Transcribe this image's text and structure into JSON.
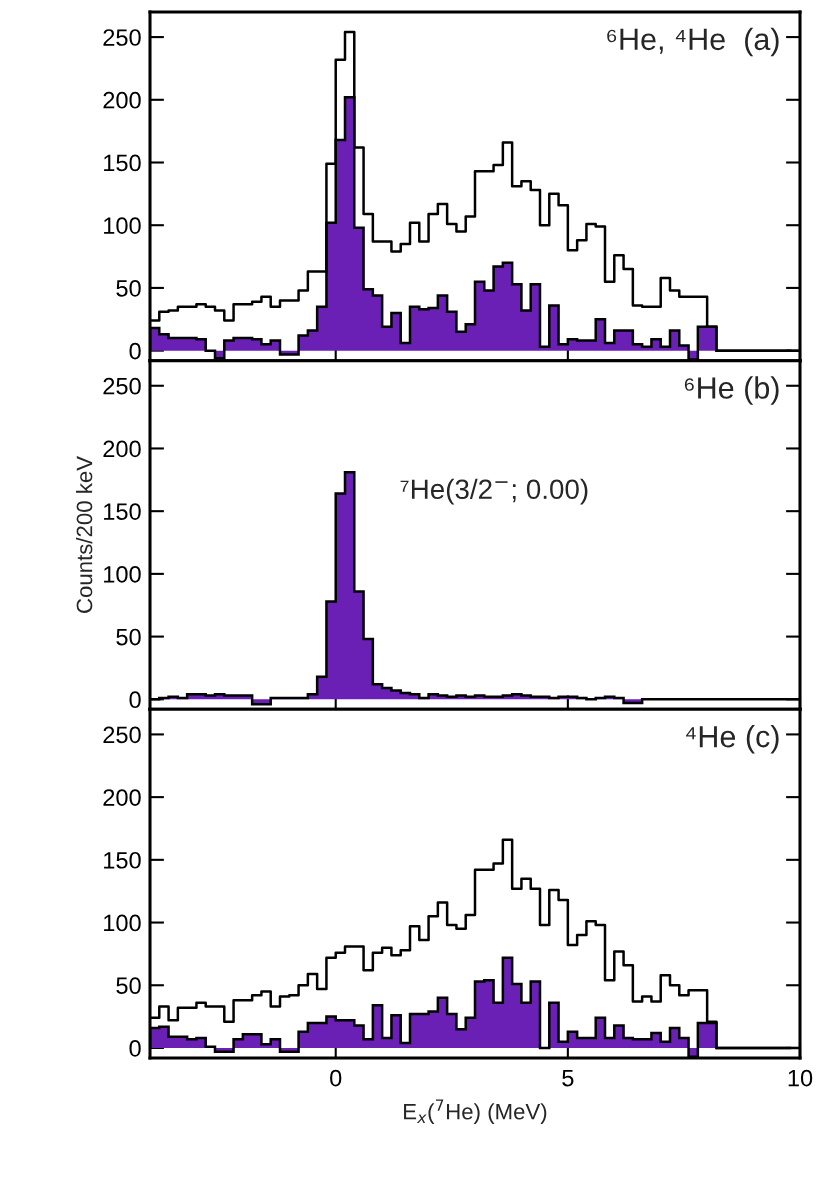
{
  "chart_data": [
    {
      "type": "histogram",
      "tick_labels": "y",
      "bins": [
        -4.0,
        -3.8,
        -3.6,
        -3.4,
        -3.2,
        -3.0,
        -2.8,
        -2.6,
        -2.4,
        -2.2,
        -2.0,
        -1.8,
        -1.6,
        -1.4,
        -1.2,
        -1.0,
        -0.8,
        -0.6,
        -0.4,
        -0.2,
        0.0,
        0.2,
        0.4,
        0.6,
        0.8,
        1.0,
        1.2,
        1.4,
        1.6,
        1.8,
        2.0,
        2.2,
        2.4,
        2.6,
        2.8,
        3.0,
        3.2,
        3.4,
        3.6,
        3.8,
        4.0,
        4.2,
        4.4,
        4.6,
        4.8,
        5.0,
        5.2,
        5.4,
        5.6,
        5.8,
        6.0,
        6.2,
        6.4,
        6.6,
        6.8,
        7.0,
        7.2,
        7.4,
        7.6,
        7.8,
        8.0,
        8.2,
        8.4,
        8.6,
        8.8,
        9.0,
        9.2,
        9.4,
        9.6,
        9.8,
        10.0
      ],
      "series": [
        {
          "type": "step",
          "color": "#000000",
          "x": [
            -4.0,
            -3.8,
            -3.6,
            -3.4,
            -3.2,
            -3.0,
            -2.8,
            -2.6,
            -2.4,
            -2.2,
            -2.0,
            -1.8,
            -1.6,
            -1.4,
            -1.2,
            -1.0,
            -0.8,
            -0.6,
            -0.4,
            -0.2,
            0.0,
            0.2,
            0.4,
            0.6,
            0.8,
            1.0,
            1.2,
            1.4,
            1.6,
            1.8,
            2.0,
            2.2,
            2.4,
            2.6,
            2.8,
            3.0,
            3.2,
            3.4,
            3.6,
            3.8,
            4.0,
            4.2,
            4.4,
            4.6,
            4.8,
            5.0,
            5.2,
            5.4,
            5.6,
            5.8,
            6.0,
            6.2,
            6.4,
            6.6,
            6.8,
            7.0,
            7.2,
            7.4,
            7.6,
            7.8,
            8.0,
            8.2,
            8.4,
            8.6,
            8.8,
            9.0,
            9.2,
            9.4,
            9.6,
            9.8
          ],
          "values": [
            24,
            31,
            32,
            35,
            35,
            37,
            35,
            32,
            24,
            37,
            37,
            39,
            43,
            35,
            40,
            40,
            48,
            63,
            63,
            149,
            232,
            254,
            162,
            109,
            87,
            87,
            79,
            85,
            102,
            87,
            109,
            117,
            101,
            95,
            107,
            143,
            143,
            148,
            166,
            131,
            135,
            128,
            100,
            125,
            116,
            80,
            88,
            101,
            99,
            55,
            76,
            65,
            36,
            35,
            35,
            58,
            48,
            43,
            43,
            43,
            19,
            0,
            0,
            0,
            0,
            0,
            0,
            0,
            0,
            0
          ]
        },
        {
          "color": "#6a1fb5",
          "values": [
            18,
            13,
            10,
            10,
            10,
            9,
            0,
            -6,
            8,
            10,
            10,
            9,
            5,
            8,
            -3,
            -3,
            12,
            16,
            35,
            102,
            168,
            202,
            98,
            49,
            44,
            19,
            30,
            6,
            35,
            33,
            34,
            44,
            31,
            15,
            21,
            55,
            48,
            67,
            70,
            53,
            32,
            53,
            3,
            36,
            5,
            9,
            8,
            8,
            25,
            6,
            16,
            16,
            5,
            3,
            9,
            3,
            16,
            4,
            -7,
            19,
            19,
            0,
            0,
            0,
            0,
            0,
            0,
            0,
            0,
            0
          ]
        }
      ],
      "xlim": [
        -4,
        10
      ],
      "xticks": [
        0,
        5,
        10
      ],
      "ylim": [
        -8,
        270
      ],
      "yticks": [
        0,
        50,
        100,
        150,
        200,
        250
      ],
      "annotations": [
        "⁶He, ⁴He  (a)"
      ]
    },
    {
      "type": "histogram",
      "tick_labels": "y",
      "ylabel": "Counts/200 keV",
      "bins": [
        -4.0,
        -3.8,
        -3.6,
        -3.4,
        -3.2,
        -3.0,
        -2.8,
        -2.6,
        -2.4,
        -2.2,
        -2.0,
        -1.8,
        -1.6,
        -1.4,
        -1.2,
        -1.0,
        -0.8,
        -0.6,
        -0.4,
        -0.2,
        0.0,
        0.2,
        0.4,
        0.6,
        0.8,
        1.0,
        1.2,
        1.4,
        1.6,
        1.8,
        2.0,
        2.2,
        2.4,
        2.6,
        2.8,
        3.0,
        3.2,
        3.4,
        3.6,
        3.8,
        4.0,
        4.2,
        4.4,
        4.6,
        4.8,
        5.0,
        5.2,
        5.4,
        5.6,
        5.8,
        6.0,
        6.2,
        6.4,
        6.6,
        6.8,
        7.0,
        7.2,
        7.4,
        7.6,
        7.8,
        8.0,
        8.2,
        8.4,
        8.6,
        8.8,
        9.0,
        9.2,
        9.4,
        9.6,
        9.8,
        10.0
      ],
      "series": [
        {
          "color": "#6a1fb5",
          "values": [
            0,
            1,
            2,
            1,
            4,
            4,
            3,
            4,
            3,
            3,
            3,
            -4,
            -4,
            1,
            1,
            1,
            1,
            4,
            18,
            78,
            164,
            181,
            86,
            48,
            12,
            9,
            7,
            5,
            4,
            1,
            4,
            3,
            2,
            3,
            2,
            3,
            2,
            2,
            3,
            4,
            3,
            2,
            2,
            1,
            2,
            2,
            1,
            0,
            1,
            2,
            1,
            -3,
            -3,
            0,
            0,
            0,
            0,
            0,
            0,
            0,
            0,
            0,
            0,
            0,
            0,
            0,
            0,
            0,
            0,
            0
          ]
        }
      ],
      "xlim": [
        -4,
        10
      ],
      "xticks": [
        0,
        5,
        10
      ],
      "ylim": [
        -8,
        270
      ],
      "yticks": [
        0,
        50,
        100,
        150,
        200,
        250
      ],
      "annotations": [
        "⁶He (b)",
        {
          "text": "⁷He(3/2$^{−}$; 0.00)",
          "x": 0.3,
          "y": 181
        }
      ]
    },
    {
      "type": "histogram",
      "xlabel": "E$_{x}$($^{7}$He) (MeV)",
      "bins": [
        -4.0,
        -3.8,
        -3.6,
        -3.4,
        -3.2,
        -3.0,
        -2.8,
        -2.6,
        -2.4,
        -2.2,
        -2.0,
        -1.8,
        -1.6,
        -1.4,
        -1.2,
        -1.0,
        -0.8,
        -0.6,
        -0.4,
        -0.2,
        0.0,
        0.2,
        0.4,
        0.6,
        0.8,
        1.0,
        1.2,
        1.4,
        1.6,
        1.8,
        2.0,
        2.2,
        2.4,
        2.6,
        2.8,
        3.0,
        3.2,
        3.4,
        3.6,
        3.8,
        4.0,
        4.2,
        4.4,
        4.6,
        4.8,
        5.0,
        5.2,
        5.4,
        5.6,
        5.8,
        6.0,
        6.2,
        6.4,
        6.6,
        6.8,
        7.0,
        7.2,
        7.4,
        7.6,
        7.8,
        8.0,
        8.2,
        8.4,
        8.6,
        8.8,
        9.0,
        9.2,
        9.4,
        9.6,
        9.8,
        10.0
      ],
      "series": [
        {
          "type": "step",
          "color": "#000000",
          "x": [
            -4.0,
            -3.8,
            -3.6,
            -3.4,
            -3.2,
            -3.0,
            -2.8,
            -2.6,
            -2.4,
            -2.2,
            -2.0,
            -1.8,
            -1.6,
            -1.4,
            -1.2,
            -1.0,
            -0.8,
            -0.6,
            -0.4,
            -0.2,
            0.0,
            0.2,
            0.4,
            0.6,
            0.8,
            1.0,
            1.2,
            1.4,
            1.6,
            1.8,
            2.0,
            2.2,
            2.4,
            2.6,
            2.8,
            3.0,
            3.2,
            3.4,
            3.6,
            3.8,
            4.0,
            4.2,
            4.4,
            4.6,
            4.8,
            5.0,
            5.2,
            5.4,
            5.6,
            5.8,
            6.0,
            6.2,
            6.4,
            6.6,
            6.8,
            7.0,
            7.2,
            7.4,
            7.6,
            7.8,
            8.0,
            8.2,
            8.4,
            8.6,
            8.8,
            9.0,
            9.2,
            9.4,
            9.6,
            9.8
          ],
          "values": [
            24,
            33,
            22,
            32,
            32,
            36,
            33,
            33,
            21,
            38,
            38,
            42,
            45,
            33,
            41,
            42,
            50,
            59,
            47,
            72,
            76,
            81,
            81,
            62,
            76,
            80,
            74,
            78,
            97,
            86,
            105,
            116,
            98,
            95,
            106,
            142,
            142,
            147,
            166,
            127,
            135,
            127,
            98,
            126,
            118,
            82,
            90,
            101,
            98,
            54,
            77,
            66,
            37,
            41,
            37,
            58,
            50,
            42,
            46,
            46,
            21,
            0,
            0,
            0,
            0,
            0,
            0,
            0,
            0,
            0
          ]
        },
        {
          "color": "#6a1fb5",
          "values": [
            16,
            17,
            9,
            9,
            7,
            8,
            1,
            -3,
            -3,
            7,
            11,
            11,
            3,
            7,
            -3,
            -3,
            13,
            20,
            20,
            25,
            22,
            22,
            18,
            7,
            34,
            8,
            26,
            4,
            27,
            27,
            29,
            40,
            27,
            15,
            24,
            53,
            54,
            36,
            72,
            51,
            36,
            53,
            0,
            36,
            5,
            13,
            8,
            8,
            24,
            8,
            18,
            8,
            7,
            7,
            12,
            5,
            16,
            8,
            -7,
            20,
            20,
            0,
            0,
            0,
            0,
            0,
            0,
            0,
            0,
            0
          ]
        }
      ],
      "xlim": [
        -4,
        10
      ],
      "xticks": [
        0,
        5,
        10
      ],
      "ylim": [
        -8,
        270
      ],
      "yticks": [
        0,
        50,
        100,
        150,
        200,
        250
      ],
      "annotations": [
        "⁴He (c)"
      ]
    }
  ]
}
